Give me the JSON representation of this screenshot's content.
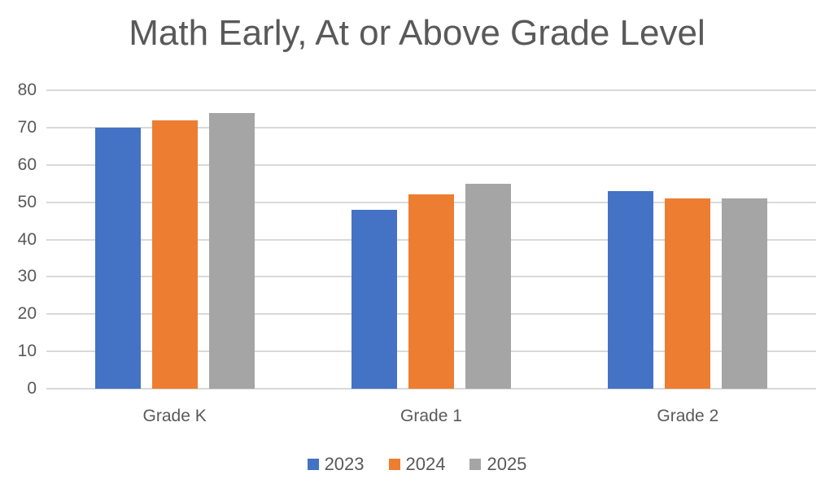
{
  "title": "Math Early, At or Above Grade Level",
  "chart_data": {
    "type": "bar",
    "title": "Math Early, At or Above Grade Level",
    "categories": [
      "Grade K",
      "Grade 1",
      "Grade 2"
    ],
    "series": [
      {
        "name": "2023",
        "color": "#4472C4",
        "values": [
          70,
          48,
          53
        ]
      },
      {
        "name": "2024",
        "color": "#ED7D31",
        "values": [
          72,
          52,
          51
        ]
      },
      {
        "name": "2025",
        "color": "#A5A5A5",
        "values": [
          74,
          55,
          51
        ]
      }
    ],
    "xlabel": "",
    "ylabel": "",
    "ylim": [
      0,
      80
    ],
    "ytick_step": 10,
    "ytick_labels": [
      "0",
      "10",
      "20",
      "30",
      "40",
      "50",
      "60",
      "70",
      "80"
    ],
    "grid": true,
    "legend_position": "bottom"
  },
  "colors": {
    "background": "#FFFFFF",
    "text": "#595959",
    "gridline": "#D9D9D9"
  }
}
